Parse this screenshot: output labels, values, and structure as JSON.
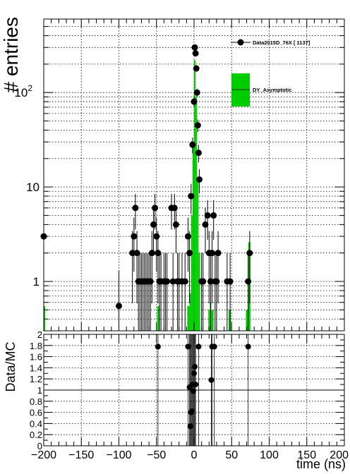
{
  "chart_data": [
    {
      "type": "bar",
      "panel": "main",
      "ylabel": "# entries",
      "yscale": "log",
      "ylim": [
        0.3,
        600
      ],
      "xlim": [
        -200,
        200
      ],
      "grid": true,
      "legend_position": "top-right",
      "ytick_labels": [
        "1",
        "10",
        "10^{2}"
      ],
      "legend": [
        {
          "label": "Data2015D_76X [     1137]",
          "marker": "circle",
          "color": "#000000"
        },
        {
          "label": "DY_Asymptotic",
          "marker": "box",
          "color": "#00cc00"
        }
      ],
      "series": [
        {
          "name": "DY_Asymptotic",
          "style": "hist",
          "color": "#00cc00",
          "bins": [
            [
              -202,
              -198,
              0.55
            ],
            [
              -49,
              -46,
              0.55
            ],
            [
              -9,
              -6,
              0.55
            ],
            [
              -6,
              -4,
              0.75
            ],
            [
              -4,
              -2,
              5
            ],
            [
              -2,
              0,
              30
            ],
            [
              0,
              2,
              220
            ],
            [
              2,
              4,
              90
            ],
            [
              4,
              6,
              12
            ],
            [
              6,
              8,
              2
            ],
            [
              19,
              21,
              0.5
            ],
            [
              21,
              23,
              0.6
            ],
            [
              23,
              26,
              0.5
            ],
            [
              46,
              49,
              0.5
            ],
            [
              69,
              72,
              0.5
            ],
            [
              72,
              75,
              2.6
            ]
          ]
        },
        {
          "name": "Data2015D_76X",
          "style": "points",
          "color": "#000000",
          "points": [
            [
              -200,
              3
            ],
            [
              -100,
              0.55
            ],
            [
              -82,
              2
            ],
            [
              -80,
              3
            ],
            [
              -78,
              6
            ],
            [
              -76,
              2
            ],
            [
              -74,
              1
            ],
            [
              -72,
              1
            ],
            [
              -70,
              1
            ],
            [
              -68,
              1
            ],
            [
              -66,
              1
            ],
            [
              -64,
              1
            ],
            [
              -62,
              1
            ],
            [
              -60,
              1
            ],
            [
              -58,
              1
            ],
            [
              -56,
              2
            ],
            [
              -54,
              4
            ],
            [
              -52,
              6
            ],
            [
              -50,
              3
            ],
            [
              -48,
              2
            ],
            [
              -46,
              1
            ],
            [
              -44,
              1
            ],
            [
              -40,
              1
            ],
            [
              -38,
              1
            ],
            [
              -36,
              1
            ],
            [
              -30,
              6
            ],
            [
              -28,
              1
            ],
            [
              -26,
              6
            ],
            [
              -24,
              4
            ],
            [
              -22,
              1
            ],
            [
              -20,
              1
            ],
            [
              -16,
              1
            ],
            [
              -12,
              1
            ],
            [
              -8,
              3
            ],
            [
              -6,
              2
            ],
            [
              -4,
              8
            ],
            [
              -2,
              28
            ],
            [
              0,
              80
            ],
            [
              1,
              300
            ],
            [
              2,
              260
            ],
            [
              3,
              180
            ],
            [
              4,
              100
            ],
            [
              5,
              45
            ],
            [
              6,
              23
            ],
            [
              7,
              12
            ],
            [
              10,
              1
            ],
            [
              12,
              1
            ],
            [
              15,
              4
            ],
            [
              18,
              5
            ],
            [
              20,
              2
            ],
            [
              22,
              1
            ],
            [
              24,
              2
            ],
            [
              26,
              5
            ],
            [
              28,
              1
            ],
            [
              30,
              1
            ],
            [
              32,
              2
            ],
            [
              44,
              1
            ],
            [
              48,
              1
            ],
            [
              72,
              1
            ],
            [
              74,
              2
            ]
          ]
        }
      ]
    },
    {
      "type": "scatter",
      "panel": "ratio",
      "ylabel": "Data/MC",
      "xlabel": "time (ns)",
      "xlim": [
        -200,
        200
      ],
      "ylim": [
        0,
        2
      ],
      "grid": true,
      "reference_line": 1,
      "xtick_labels": [
        "−200",
        "−150",
        "−100",
        "−50",
        "0",
        "50",
        "100",
        "150",
        "200"
      ],
      "ytick_labels": [
        "0",
        "0.2",
        "0.4",
        "0.6",
        "0.8",
        "1",
        "1.2",
        "1.4",
        "1.6",
        "1.8",
        "2"
      ],
      "points": [
        [
          -48,
          1.78
        ],
        [
          -8,
          1.78
        ],
        [
          -6,
          1.05
        ],
        [
          -5,
          0.35
        ],
        [
          -4,
          0.6
        ],
        [
          -3,
          0.62
        ],
        [
          -2,
          1.1
        ],
        [
          -1,
          0.98
        ],
        [
          0,
          1.3
        ],
        [
          1,
          1.42
        ],
        [
          2,
          1.1
        ],
        [
          6,
          1.78
        ],
        [
          23,
          1.18
        ],
        [
          24,
          1.78
        ],
        [
          27,
          1.78
        ],
        [
          72,
          1.78
        ]
      ]
    }
  ]
}
